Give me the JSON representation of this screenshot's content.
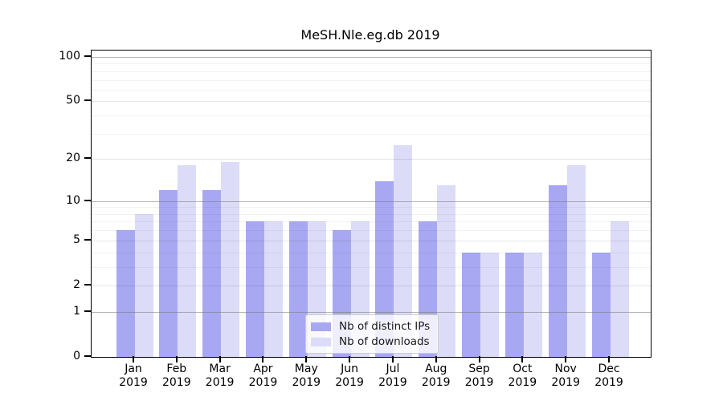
{
  "title": "MeSH.Nle.eg.db 2019",
  "colors": {
    "ips_bar": "#a8a8f2",
    "downloads_bar": "#dcdcf9",
    "grid_strong": "#8c8c8c",
    "grid_medium": "#e6e6e6",
    "grid_minor": "#f2f2f2",
    "axis": "#000000"
  },
  "legend": {
    "items": [
      {
        "label": "Nb of distinct IPs",
        "series": "ips"
      },
      {
        "label": "Nb of downloads",
        "series": "downloads"
      }
    ]
  },
  "y_axis": {
    "tick_labels": [
      100,
      50,
      20,
      10,
      5,
      2,
      1,
      0
    ],
    "gridlines_strong": [
      1,
      10,
      100
    ],
    "gridlines_medium": [
      2,
      5,
      20,
      50
    ],
    "gridlines_minor": [
      3,
      4,
      6,
      7,
      8,
      9,
      30,
      40,
      60,
      70,
      80,
      90
    ]
  },
  "x_axis": {
    "months": [
      "Jan",
      "Feb",
      "Mar",
      "Apr",
      "May",
      "Jun",
      "Jul",
      "Aug",
      "Sep",
      "Oct",
      "Nov",
      "Dec"
    ],
    "year": "2019"
  },
  "chart_data": {
    "type": "bar",
    "title": "MeSH.Nle.eg.db 2019",
    "categories": [
      "Jan 2019",
      "Feb 2019",
      "Mar 2019",
      "Apr 2019",
      "May 2019",
      "Jun 2019",
      "Jul 2019",
      "Aug 2019",
      "Sep 2019",
      "Oct 2019",
      "Nov 2019",
      "Dec 2019"
    ],
    "series": [
      {
        "name": "Nb of distinct IPs",
        "values": [
          6,
          12,
          12,
          7,
          7,
          6,
          14,
          7,
          4,
          4,
          13,
          4
        ]
      },
      {
        "name": "Nb of downloads",
        "values": [
          8,
          18,
          19,
          7,
          7,
          7,
          25,
          13,
          4,
          4,
          18,
          7
        ]
      }
    ],
    "yscale": "log1p",
    "ylim": [
      0,
      105
    ],
    "yticks": [
      0,
      1,
      2,
      5,
      10,
      20,
      50,
      100
    ],
    "grid": true,
    "legend_position": "lower center"
  }
}
